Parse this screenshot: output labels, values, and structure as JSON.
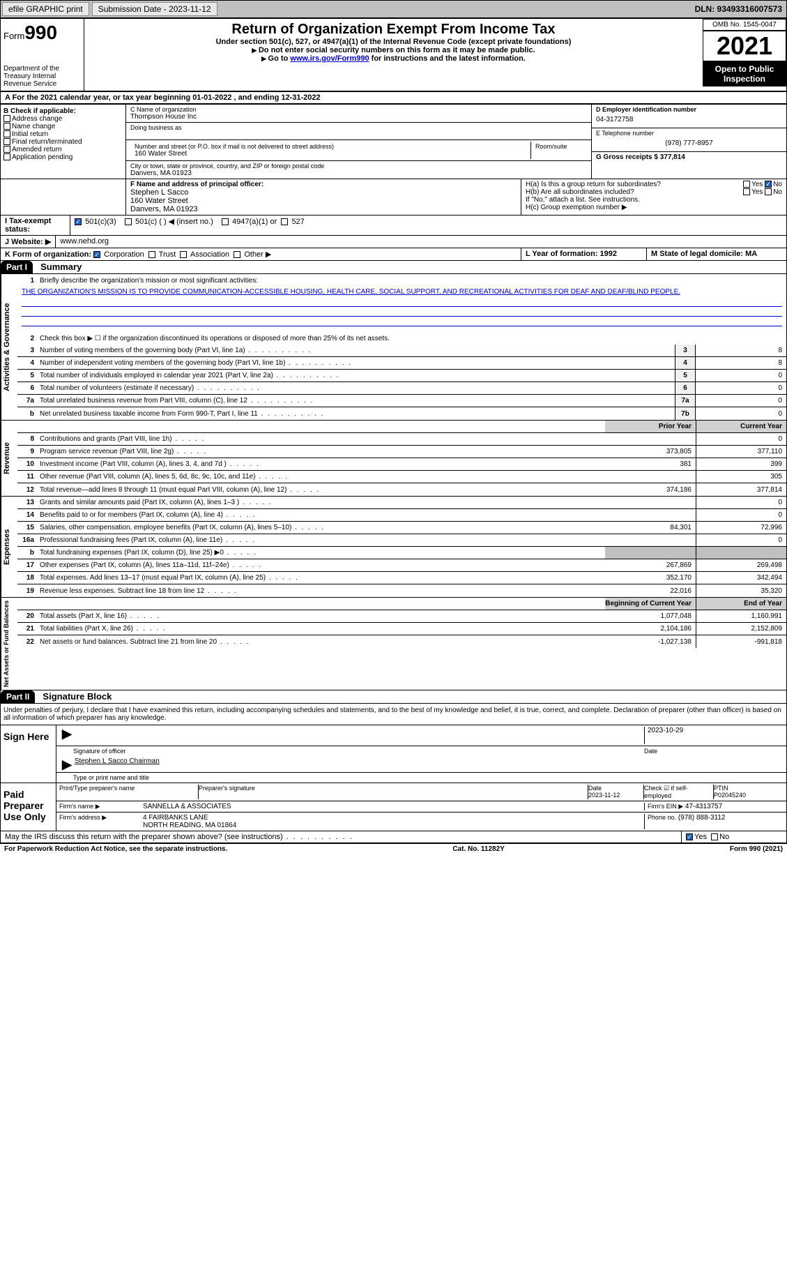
{
  "topbar": {
    "efile_label": "efile GRAPHIC print",
    "submission_label": "Submission Date - 2023-11-12",
    "dln_label": "DLN: 93493316007573"
  },
  "header": {
    "form_label": "Form",
    "form_num": "990",
    "dept": "Department of the Treasury\nInternal Revenue Service",
    "title": "Return of Organization Exempt From Income Tax",
    "subtitle1": "Under section 501(c), 527, or 4947(a)(1) of the Internal Revenue Code (except private foundations)",
    "subtitle2": "Do not enter social security numbers on this form as it may be made public.",
    "subtitle3_pre": "Go to ",
    "subtitle3_link": "www.irs.gov/Form990",
    "subtitle3_post": " for instructions and the latest information.",
    "omb": "OMB No. 1545-0047",
    "year": "2021",
    "inspection": "Open to Public Inspection"
  },
  "row_a": {
    "text": "A For the 2021 calendar year, or tax year beginning 01-01-2022    , and ending 12-31-2022"
  },
  "section_b": {
    "title": "B Check if applicable:",
    "items": [
      "Address change",
      "Name change",
      "Initial return",
      "Final return/terminated",
      "Amended return",
      "Application pending"
    ]
  },
  "section_c": {
    "name_label": "C Name of organization",
    "name": "Thompson House Inc",
    "dba_label": "Doing business as",
    "street_label": "Number and street (or P.O. box if mail is not delivered to street address)",
    "room_label": "Room/suite",
    "street": "160 Water Street",
    "city_label": "City or town, state or province, country, and ZIP or foreign postal code",
    "city": "Danvers, MA  01923"
  },
  "section_d": {
    "ein_label": "D Employer identification number",
    "ein": "04-3172758",
    "phone_label": "E Telephone number",
    "phone": "(978) 777-8957",
    "gross_label": "G Gross receipts $ 377,814"
  },
  "section_f": {
    "label": "F  Name and address of principal officer:",
    "name": "Stephen L Sacco",
    "street": "160 Water Street",
    "city": "Danvers, MA  01923"
  },
  "section_h": {
    "ha_label": "H(a)  Is this a group return for subordinates?",
    "hb_label": "H(b)  Are all subordinates included?",
    "hb_note": "If \"No,\" attach a list. See instructions.",
    "hc_label": "H(c)  Group exemption number ▶",
    "yes": "Yes",
    "no": "No"
  },
  "section_i": {
    "label": "I   Tax-exempt status:",
    "opt1": "501(c)(3)",
    "opt2": "501(c) (  ) ◀ (insert no.)",
    "opt3": "4947(a)(1) or",
    "opt4": "527"
  },
  "section_j": {
    "label": "J  Website: ▶",
    "value": "  www.nehd.org"
  },
  "section_k": {
    "label": "K Form of organization:",
    "opts": [
      "Corporation",
      "Trust",
      "Association",
      "Other ▶"
    ]
  },
  "section_l": {
    "label": "L Year of formation: 1992"
  },
  "section_m": {
    "label": "M State of legal domicile: MA"
  },
  "part1": {
    "header": "Part I",
    "title": "Summary",
    "side1": "Activities & Governance",
    "side2": "Revenue",
    "side3": "Expenses",
    "side4": "Net Assets or Fund Balances",
    "line1_label": "Briefly describe the organization's mission or most significant activities:",
    "mission": "THE ORGANIZATION'S MISSION IS TO PROVIDE COMMUNICATION-ACCESSIBLE HOUSING, HEALTH CARE, SOCIAL SUPPORT, AND RECREATIONAL ACTIVITIES FOR DEAF AND DEAF/BLIND PEOPLE.",
    "line2": "Check this box ▶ ☐  if the organization discontinued its operations or disposed of more than 25% of its net assets.",
    "lines": [
      {
        "n": "3",
        "t": "Number of voting members of the governing body (Part VI, line 1a)",
        "box": "3",
        "v": "8"
      },
      {
        "n": "4",
        "t": "Number of independent voting members of the governing body (Part VI, line 1b)",
        "box": "4",
        "v": "8"
      },
      {
        "n": "5",
        "t": "Total number of individuals employed in calendar year 2021 (Part V, line 2a)",
        "box": "5",
        "v": "0"
      },
      {
        "n": "6",
        "t": "Total number of volunteers (estimate if necessary)",
        "box": "6",
        "v": "0"
      },
      {
        "n": "7a",
        "t": "Total unrelated business revenue from Part VIII, column (C), line 12",
        "box": "7a",
        "v": "0"
      },
      {
        "n": "b",
        "t": "Net unrelated business taxable income from Form 990-T, Part I, line 11",
        "box": "7b",
        "v": "0"
      }
    ],
    "col_prior": "Prior Year",
    "col_current": "Current Year",
    "rev_lines": [
      {
        "n": "8",
        "t": "Contributions and grants (Part VIII, line 1h)",
        "p": "",
        "c": "0"
      },
      {
        "n": "9",
        "t": "Program service revenue (Part VIII, line 2g)",
        "p": "373,805",
        "c": "377,110"
      },
      {
        "n": "10",
        "t": "Investment income (Part VIII, column (A), lines 3, 4, and 7d )",
        "p": "381",
        "c": "399"
      },
      {
        "n": "11",
        "t": "Other revenue (Part VIII, column (A), lines 5, 6d, 8c, 9c, 10c, and 11e)",
        "p": "",
        "c": "305"
      },
      {
        "n": "12",
        "t": "Total revenue—add lines 8 through 11 (must equal Part VIII, column (A), line 12)",
        "p": "374,186",
        "c": "377,814"
      }
    ],
    "exp_lines": [
      {
        "n": "13",
        "t": "Grants and similar amounts paid (Part IX, column (A), lines 1–3 )",
        "p": "",
        "c": "0"
      },
      {
        "n": "14",
        "t": "Benefits paid to or for members (Part IX, column (A), line 4)",
        "p": "",
        "c": "0"
      },
      {
        "n": "15",
        "t": "Salaries, other compensation, employee benefits (Part IX, column (A), lines 5–10)",
        "p": "84,301",
        "c": "72,996"
      },
      {
        "n": "16a",
        "t": "Professional fundraising fees (Part IX, column (A), line 11e)",
        "p": "",
        "c": "0"
      },
      {
        "n": "b",
        "t": "Total fundraising expenses (Part IX, column (D), line 25) ▶0",
        "p": "shade",
        "c": "shade"
      },
      {
        "n": "17",
        "t": "Other expenses (Part IX, column (A), lines 11a–11d, 11f–24e)",
        "p": "267,869",
        "c": "269,498"
      },
      {
        "n": "18",
        "t": "Total expenses. Add lines 13–17 (must equal Part IX, column (A), line 25)",
        "p": "352,170",
        "c": "342,494"
      },
      {
        "n": "19",
        "t": "Revenue less expenses. Subtract line 18 from line 12",
        "p": "22,016",
        "c": "35,320"
      }
    ],
    "col_begin": "Beginning of Current Year",
    "col_end": "End of Year",
    "net_lines": [
      {
        "n": "20",
        "t": "Total assets (Part X, line 16)",
        "p": "1,077,048",
        "c": "1,160,991"
      },
      {
        "n": "21",
        "t": "Total liabilities (Part X, line 26)",
        "p": "2,104,186",
        "c": "2,152,809"
      },
      {
        "n": "22",
        "t": "Net assets or fund balances. Subtract line 21 from line 20",
        "p": "-1,027,138",
        "c": "-991,818"
      }
    ]
  },
  "part2": {
    "header": "Part II",
    "title": "Signature Block",
    "declaration": "Under penalties of perjury, I declare that I have examined this return, including accompanying schedules and statements, and to the best of my knowledge and belief, it is true, correct, and complete. Declaration of preparer (other than officer) is based on all information of which preparer has any knowledge.",
    "sign_here": "Sign Here",
    "sig_officer": "Signature of officer",
    "sig_date": "2023-10-29",
    "date_label": "Date",
    "officer_name": "Stephen L Sacco  Chairman",
    "type_name": "Type or print name and title",
    "paid_prep": "Paid Preparer Use Only",
    "prep_name_label": "Print/Type preparer's name",
    "prep_sig_label": "Preparer's signature",
    "prep_date_label": "Date",
    "prep_date": "2023-11-12",
    "check_if": "Check ☑ if self-employed",
    "ptin_label": "PTIN",
    "ptin": "P02045240",
    "firm_name_label": "Firm's name     ▶",
    "firm_name": "SANNELLA & ASSOCIATES",
    "firm_ein_label": "Firm's EIN ▶",
    "firm_ein": "47-4313757",
    "firm_addr_label": "Firm's address ▶",
    "firm_addr1": "4 FAIRBANKS LANE",
    "firm_addr2": "NORTH READING, MA  01864",
    "phone_label": "Phone no.",
    "phone": "(978) 888-3112",
    "discuss": "May the IRS discuss this return with the preparer shown above? (see instructions)",
    "yes": "Yes",
    "no": "No"
  },
  "footer": {
    "left": "For Paperwork Reduction Act Notice, see the separate instructions.",
    "center": "Cat. No. 11282Y",
    "right": "Form 990 (2021)"
  }
}
